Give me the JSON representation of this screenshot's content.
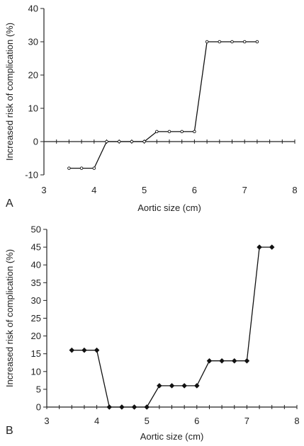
{
  "chart_data": [
    {
      "type": "line",
      "panel_label": "A",
      "xlabel": "Aortic size (cm)",
      "ylabel": "Increased risk of complication (%)",
      "xlim": [
        3,
        8
      ],
      "ylim": [
        -10,
        40
      ],
      "x_ticks": [
        3,
        4,
        5,
        6,
        7,
        8
      ],
      "y_ticks": [
        -10,
        0,
        10,
        20,
        30,
        40
      ],
      "marker": "open-circle",
      "series": [
        {
          "x": [
            3.5,
            3.75,
            4.0,
            4.25,
            4.5,
            4.75,
            5.0,
            5.25,
            5.5,
            5.75,
            6.0,
            6.25,
            6.5,
            6.75,
            7.0,
            7.25
          ],
          "values": [
            -8,
            -8,
            -8,
            0,
            0,
            0,
            0,
            3,
            3,
            3,
            3,
            30,
            30,
            30,
            30,
            30
          ]
        }
      ]
    },
    {
      "type": "line",
      "panel_label": "B",
      "xlabel": "Aortic size (cm)",
      "ylabel": "Increased risk of complication (%)",
      "xlim": [
        3,
        8
      ],
      "ylim": [
        0,
        50
      ],
      "x_ticks": [
        3,
        4,
        5,
        6,
        7,
        8
      ],
      "y_ticks": [
        0,
        5,
        10,
        15,
        20,
        25,
        30,
        35,
        40,
        45,
        50
      ],
      "marker": "filled-diamond",
      "series": [
        {
          "x": [
            3.5,
            3.75,
            4.0,
            4.25,
            4.5,
            4.75,
            5.0,
            5.25,
            5.5,
            5.75,
            6.0,
            6.25,
            6.5,
            6.75,
            7.0,
            7.25,
            7.5
          ],
          "values": [
            16,
            16,
            16,
            0,
            0,
            0,
            0,
            6,
            6,
            6,
            6,
            13,
            13,
            13,
            13,
            45,
            45
          ]
        }
      ]
    }
  ]
}
